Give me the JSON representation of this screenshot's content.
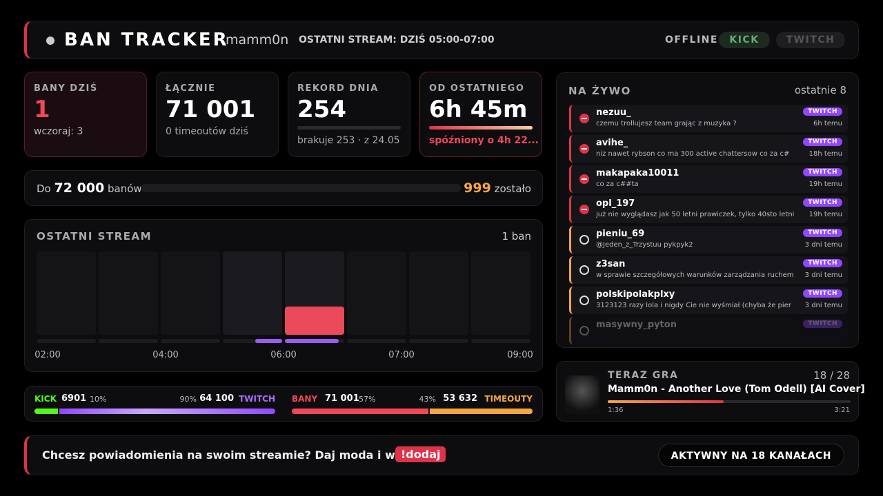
{
  "header": {
    "title": "BAN TRACKER",
    "channel": "mamm0n",
    "last_stream": "OSTATNI STREAM: DZIŚ 05:00-07:00",
    "status": "OFFLINE",
    "platforms": [
      "KICK",
      "TWITCH"
    ]
  },
  "stats": [
    {
      "label": "BANY DZIŚ",
      "value": "1",
      "sub": "wczoraj: 3"
    },
    {
      "label": "ŁĄCZNIE",
      "value": "71 001",
      "sub": "0 timeoutów dziś"
    },
    {
      "label": "REKORD DNIA",
      "value": "254",
      "sub": "brakuje 253 · z 24.05"
    },
    {
      "label": "OD OSTATNIEGO",
      "value": "6h 45m",
      "sub": "spóźniony o 4h 22..."
    }
  ],
  "goal": {
    "prefix": "Do",
    "target": "72 000",
    "unit": "banów",
    "remaining": "999",
    "remaining_label": "zostało"
  },
  "stream_chart": {
    "title": "OSTATNI STREAM",
    "count": "1 ban",
    "x_labels": [
      "02:00",
      "04:00",
      "06:00",
      "07:00",
      "09:00"
    ]
  },
  "split": {
    "kick": {
      "label": "KICK",
      "value": "6901",
      "share": "10%"
    },
    "twitch": {
      "label": "TWITCH",
      "value": "64 100",
      "share": "90%"
    },
    "bans": {
      "label": "BANY",
      "value": "71 001",
      "share": "57%"
    },
    "timeouts": {
      "label": "TIMEOUTY",
      "value": "53 632",
      "share": "43%"
    }
  },
  "live": {
    "title": "NA ŻYWO",
    "count": "ostatnie 8",
    "items": [
      {
        "type": "ban",
        "user": "nezuu_",
        "message": "czemu trollujesz team grając z muzyka ?",
        "platform": "TWITCH",
        "time": "6h temu"
      },
      {
        "type": "ban",
        "user": "avihe_",
        "message": "niz nawet rybson co ma 300 active chattersow co za c#",
        "platform": "TWITCH",
        "time": "18h temu"
      },
      {
        "type": "ban",
        "user": "makapaka10011",
        "message": "co za c##ta",
        "platform": "TWITCH",
        "time": "19h temu"
      },
      {
        "type": "ban",
        "user": "opl_197",
        "message": "już nie wyglądasz jak 50 letni prawiczek, tylko 40sto letni",
        "platform": "TWITCH",
        "time": "19h temu"
      },
      {
        "type": "timeout",
        "user": "pieniu_69",
        "message": "@Jeden_z_Trzystuu pykpyk2",
        "platform": "TWITCH",
        "time": "3 dni temu"
      },
      {
        "type": "timeout",
        "user": "z3san",
        "message": "w sprawie szczegółowych warunków zarządzania ruchem",
        "platform": "TWITCH",
        "time": "3 dni temu"
      },
      {
        "type": "timeout",
        "user": "polskipolakplxy",
        "message": "3123123 razy lola i nigdy Cie nie wyśmiał (chyba że pier",
        "platform": "TWITCH",
        "time": "3 dni temu"
      },
      {
        "type": "timeout",
        "user": "masywny_pyton",
        "platform": "TWITCH"
      }
    ]
  },
  "now_playing": {
    "title": "TERAZ GRA",
    "position": "18 / 28",
    "track": "Mamm0n - Another Love (Tom Odell) [AI Cover]",
    "elapsed": "1:36",
    "duration": "3:21"
  },
  "footer": {
    "text": "Chcesz powiadomienia na swoim streamie? Daj moda i wpisz",
    "command": "!dodaj",
    "badge": "AKTYWNY NA 18 KANAŁACH"
  }
}
